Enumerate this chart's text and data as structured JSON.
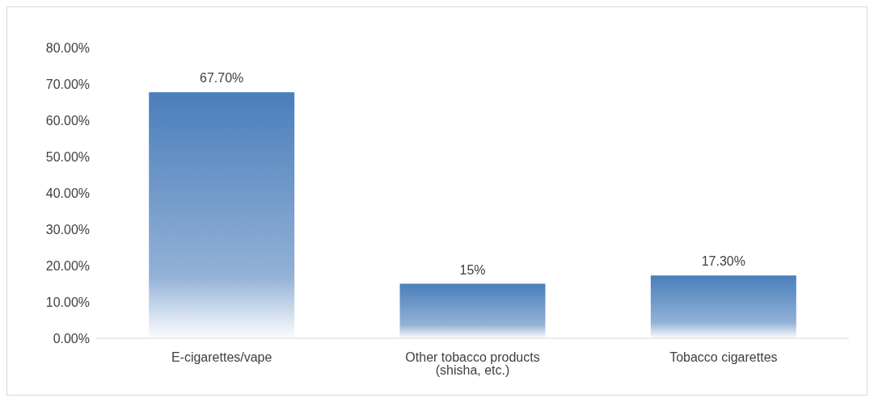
{
  "chart_data": {
    "type": "bar",
    "categories": [
      "E-cigarettes/vape",
      "Other tobacco products (shisha, etc.)",
      "Tobacco cigarettes"
    ],
    "values": [
      67.7,
      15,
      17.3
    ],
    "value_labels": [
      "67.70%",
      "15%",
      "17.30%"
    ],
    "color": "#4a7ebb",
    "ylim": [
      0,
      80
    ],
    "yticks": [
      {
        "value": 0,
        "label": "0.00%"
      },
      {
        "value": 10,
        "label": "10.00%"
      },
      {
        "value": 20,
        "label": "20.00%"
      },
      {
        "value": 30,
        "label": "30.00%"
      },
      {
        "value": 40,
        "label": "40.00%"
      },
      {
        "value": 50,
        "label": "50.00%"
      },
      {
        "value": 60,
        "label": "60.00%"
      },
      {
        "value": 70,
        "label": "70.00%"
      },
      {
        "value": 80,
        "label": "80.00%"
      }
    ],
    "grid": false,
    "legend": false
  }
}
